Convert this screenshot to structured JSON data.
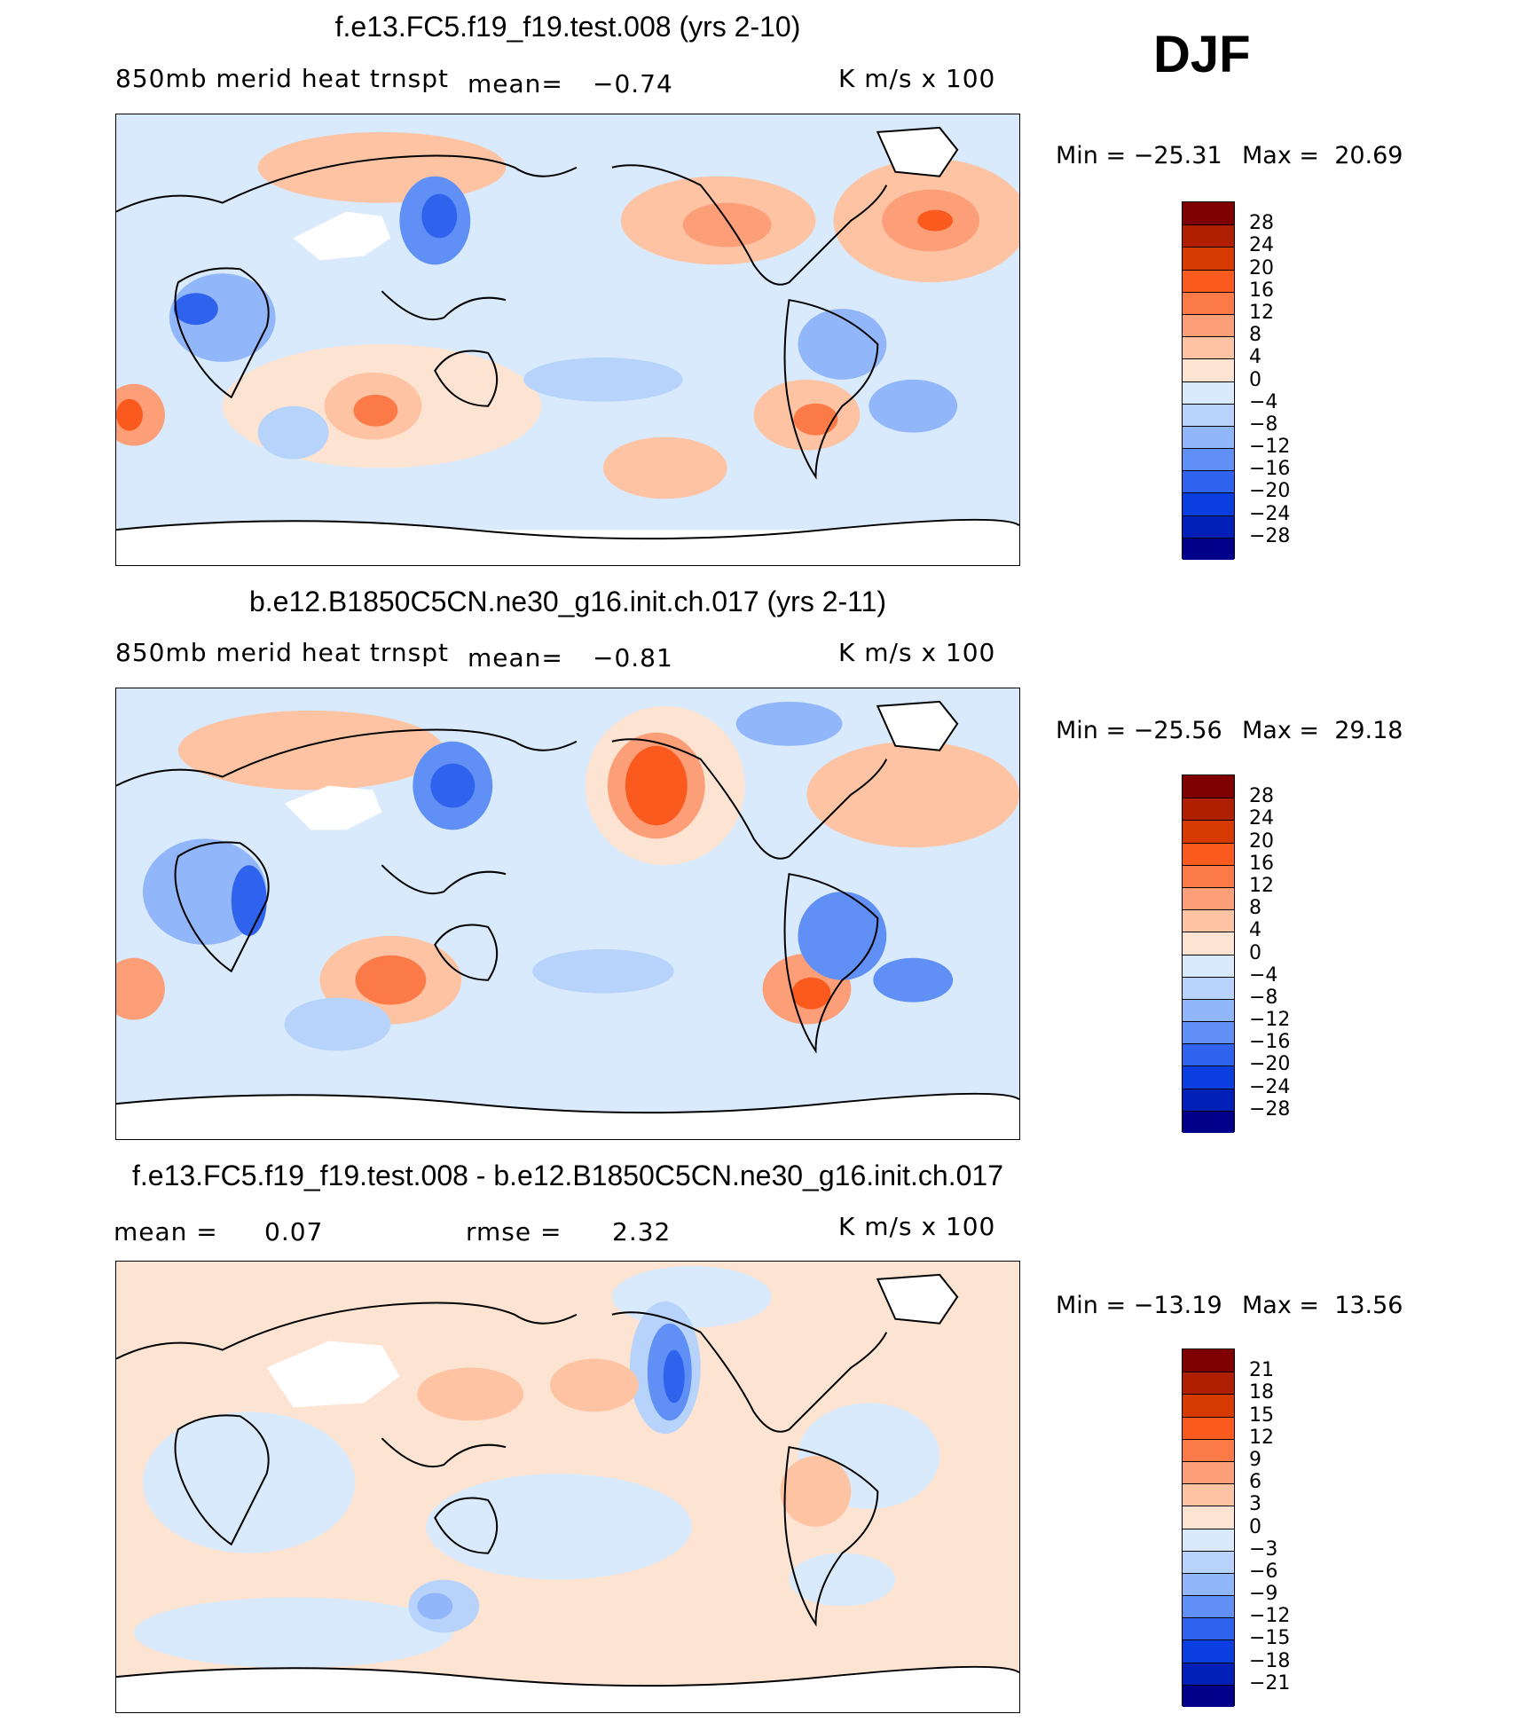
{
  "season": "DJF",
  "units": "K m/s x 100",
  "variable": "850mb merid heat trnspt",
  "panels": [
    {
      "title": "f.e13.FC5.f19_f19.test.008 (yrs 2-10)",
      "stat_label": "mean=",
      "stat_value": "−0.74",
      "min_text": "Min = −25.31",
      "max_text": "Max =  20.69",
      "colorbar_labels": [
        "28",
        "24",
        "20",
        "16",
        "12",
        "8",
        "4",
        "0",
        "−4",
        "−8",
        "−12",
        "−16",
        "−20",
        "−24",
        "−28"
      ]
    },
    {
      "title": "b.e12.B1850C5CN.ne30_g16.init.ch.017 (yrs 2-11)",
      "stat_label": "mean=",
      "stat_value": "−0.81",
      "min_text": "Min = −25.56",
      "max_text": "Max =  29.18",
      "colorbar_labels": [
        "28",
        "24",
        "20",
        "16",
        "12",
        "8",
        "4",
        "0",
        "−4",
        "−8",
        "−12",
        "−16",
        "−20",
        "−24",
        "−28"
      ]
    },
    {
      "title": "f.e13.FC5.f19_f19.test.008 - b.e12.B1850C5CN.ne30_g16.init.ch.017",
      "mean_label": "mean =",
      "mean_value": "0.07",
      "rmse_label": "rmse =",
      "rmse_value": "2.32",
      "min_text": "Min = −13.19",
      "max_text": "Max =  13.56",
      "colorbar_labels": [
        "21",
        "18",
        "15",
        "12",
        "9",
        "6",
        "3",
        "0",
        "−3",
        "−6",
        "−9",
        "−12",
        "−15",
        "−18",
        "−21"
      ]
    }
  ],
  "colors": {
    "colorbar": [
      "#7f0000",
      "#b01f00",
      "#d63a00",
      "#fa5a1e",
      "#fc7a48",
      "#fc9e78",
      "#fdc3a3",
      "#fde4d2",
      "#d8eafc",
      "#b8d3fb",
      "#91b6f9",
      "#6090f5",
      "#2f63ee",
      "#0a3ee0",
      "#0020b8",
      "#00008a"
    ],
    "ocean_base_model": "#fdd9c4",
    "ocean_base_diff": "#fde4d2",
    "land_outline": "#000000"
  }
}
